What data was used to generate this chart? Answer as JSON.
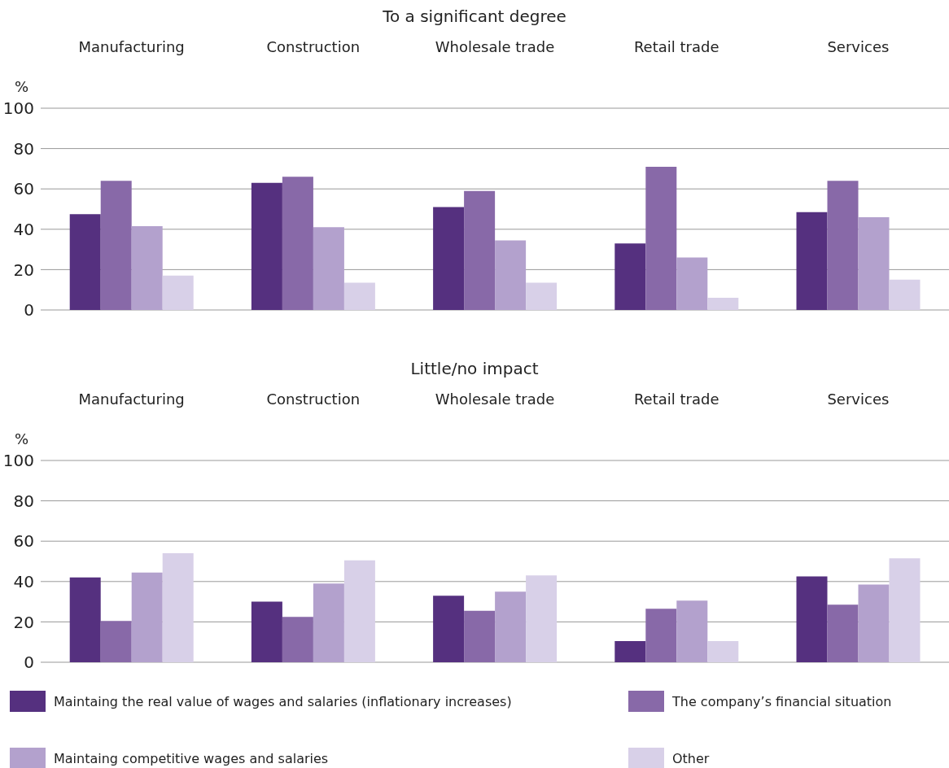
{
  "chart_data": [
    {
      "type": "bar",
      "title": "To a significant degree",
      "ylabel": "%",
      "categories": [
        "Manufacturing",
        "Construction",
        "Wholesale trade",
        "Retail trade",
        "Services"
      ],
      "series": [
        {
          "color": "#55307f",
          "values": [
            47.5,
            63,
            51,
            33,
            48.5
          ]
        },
        {
          "color": "#8869a8",
          "values": [
            64,
            66,
            59,
            71,
            64
          ]
        },
        {
          "color": "#b3a1cd",
          "values": [
            41.5,
            41,
            34.5,
            26,
            46
          ]
        },
        {
          "color": "#d8d0e8",
          "values": [
            17,
            13.5,
            13.5,
            6,
            15
          ]
        }
      ],
      "ylim": [
        0,
        100
      ],
      "yticks": [
        0,
        20,
        40,
        60,
        80,
        100
      ],
      "grid": "y",
      "legend": false
    },
    {
      "type": "bar",
      "title": "Little/no impact",
      "ylabel": "%",
      "categories": [
        "Manufacturing",
        "Construction",
        "Wholesale trade",
        "Retail trade",
        "Services"
      ],
      "series": [
        {
          "name": "Maintaing the real value of wages and salaries (inflationary increases)",
          "color": "#55307f",
          "values": [
            42,
            30,
            33,
            10.5,
            42.5
          ]
        },
        {
          "name": "The company’s financial situation",
          "color": "#8869a8",
          "values": [
            20.5,
            22.5,
            25.5,
            26.5,
            28.5
          ]
        },
        {
          "name": "Maintaing competitive wages and salaries",
          "color": "#b3a1cd",
          "values": [
            44.5,
            39,
            35,
            30.5,
            38.5
          ]
        },
        {
          "name": "Other",
          "color": "#d8d0e8",
          "values": [
            54,
            50.5,
            43,
            10.5,
            51.5
          ]
        }
      ],
      "ylim": [
        0,
        100
      ],
      "yticks": [
        0,
        20,
        40,
        60,
        80,
        100
      ],
      "grid": "y",
      "legend": "bottom"
    }
  ]
}
